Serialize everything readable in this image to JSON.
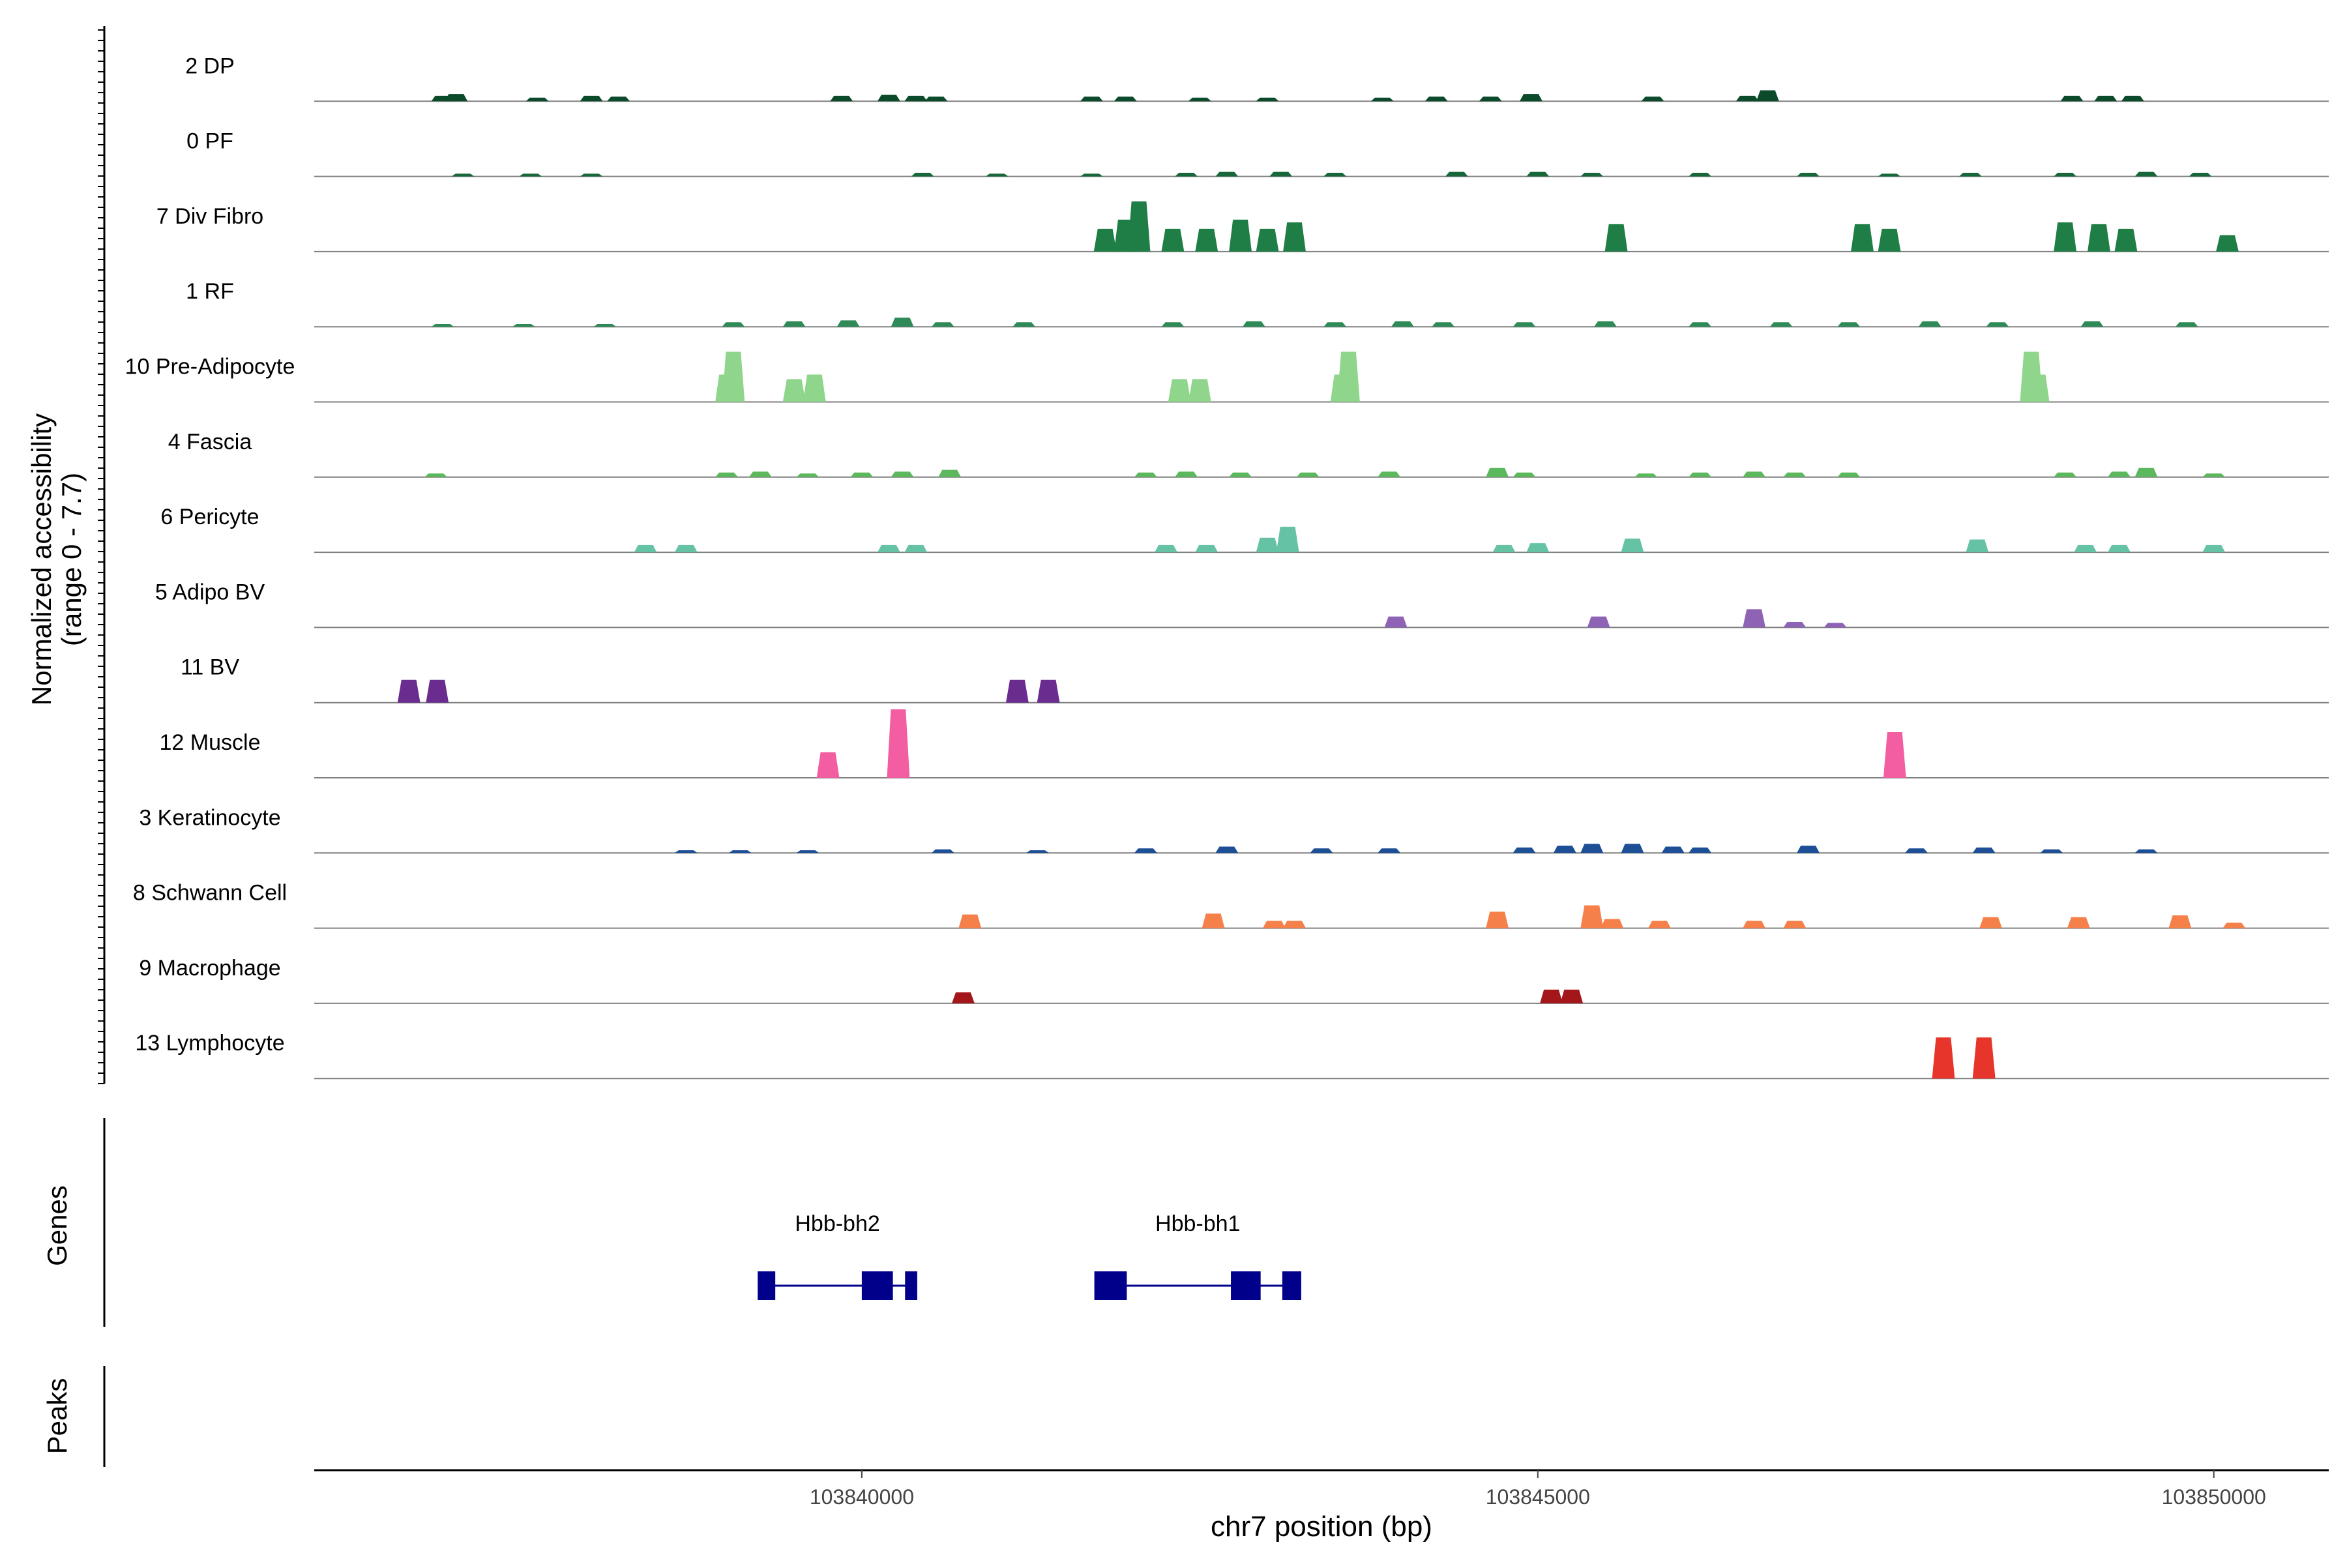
{
  "chart_data": {
    "type": "area",
    "title": "",
    "ylabel_line1": "Normalized accessibility",
    "ylabel_line2": "(range 0 - 7.7)",
    "y_range": [
      0,
      7.7
    ],
    "xlabel": "chr7 position (bp)",
    "x_range": [
      103835950,
      103850850
    ],
    "x_ticks": [
      {
        "value": 103840000,
        "label": "103840000"
      },
      {
        "value": 103845000,
        "label": "103845000"
      },
      {
        "value": 103850000,
        "label": "103850000"
      }
    ],
    "tracks": [
      {
        "name": "2 DP",
        "color": "#0b4a2a",
        "peaks": [
          [
            103836900,
            0.6
          ],
          [
            103837000,
            0.8
          ],
          [
            103837600,
            0.4
          ],
          [
            103838000,
            0.6
          ],
          [
            103838200,
            0.5
          ],
          [
            103839850,
            0.6
          ],
          [
            103840200,
            0.7
          ],
          [
            103840400,
            0.6
          ],
          [
            103840550,
            0.5
          ],
          [
            103841700,
            0.5
          ],
          [
            103841950,
            0.5
          ],
          [
            103842500,
            0.4
          ],
          [
            103843000,
            0.4
          ],
          [
            103843850,
            0.4
          ],
          [
            103844250,
            0.5
          ],
          [
            103844650,
            0.5
          ],
          [
            103844950,
            0.8
          ],
          [
            103845850,
            0.5
          ],
          [
            103846550,
            0.6
          ],
          [
            103846700,
            1.2
          ],
          [
            103848950,
            0.6
          ],
          [
            103849200,
            0.6
          ],
          [
            103849400,
            0.6
          ]
        ]
      },
      {
        "name": "0 PF",
        "color": "#17673a",
        "peaks": [
          [
            103837050,
            0.3
          ],
          [
            103837550,
            0.3
          ],
          [
            103838000,
            0.3
          ],
          [
            103840450,
            0.4
          ],
          [
            103841000,
            0.3
          ],
          [
            103841700,
            0.3
          ],
          [
            103842400,
            0.4
          ],
          [
            103842700,
            0.5
          ],
          [
            103843100,
            0.5
          ],
          [
            103843500,
            0.4
          ],
          [
            103844400,
            0.5
          ],
          [
            103845000,
            0.5
          ],
          [
            103845400,
            0.4
          ],
          [
            103846200,
            0.4
          ],
          [
            103847000,
            0.4
          ],
          [
            103847600,
            0.3
          ],
          [
            103848200,
            0.4
          ],
          [
            103848900,
            0.4
          ],
          [
            103849500,
            0.5
          ],
          [
            103849900,
            0.4
          ]
        ]
      },
      {
        "name": "7 Div Fibro",
        "color": "#1e7e45",
        "peaks": [
          [
            103841800,
            2.5
          ],
          [
            103841950,
            3.5
          ],
          [
            103842050,
            5.5
          ],
          [
            103842300,
            2.5
          ],
          [
            103842550,
            2.5
          ],
          [
            103842800,
            3.5
          ],
          [
            103843000,
            2.5
          ],
          [
            103843200,
            3.2
          ],
          [
            103845580,
            3.0
          ],
          [
            103847400,
            3.0
          ],
          [
            103847600,
            2.5
          ],
          [
            103848900,
            3.2
          ],
          [
            103849150,
            3.0
          ],
          [
            103849350,
            2.5
          ],
          [
            103850100,
            1.8
          ]
        ]
      },
      {
        "name": "1 RF",
        "color": "#2e8b57",
        "peaks": [
          [
            103836900,
            0.3
          ],
          [
            103837500,
            0.3
          ],
          [
            103838100,
            0.3
          ],
          [
            103839050,
            0.5
          ],
          [
            103839500,
            0.6
          ],
          [
            103839900,
            0.7
          ],
          [
            103840300,
            1.0
          ],
          [
            103840600,
            0.5
          ],
          [
            103841200,
            0.5
          ],
          [
            103842300,
            0.5
          ],
          [
            103842900,
            0.6
          ],
          [
            103843500,
            0.5
          ],
          [
            103844000,
            0.6
          ],
          [
            103844300,
            0.5
          ],
          [
            103844900,
            0.5
          ],
          [
            103845500,
            0.6
          ],
          [
            103846200,
            0.5
          ],
          [
            103846800,
            0.5
          ],
          [
            103847300,
            0.5
          ],
          [
            103847900,
            0.6
          ],
          [
            103848400,
            0.5
          ],
          [
            103849100,
            0.6
          ],
          [
            103849800,
            0.5
          ]
        ]
      },
      {
        "name": "10 Pre-Adipocyte",
        "color": "#8fd68c",
        "peaks": [
          [
            103839000,
            3.0
          ],
          [
            103839050,
            5.5
          ],
          [
            103839500,
            2.5
          ],
          [
            103839650,
            3.0
          ],
          [
            103842350,
            2.5
          ],
          [
            103842500,
            2.5
          ],
          [
            103843550,
            3.0
          ],
          [
            103843600,
            5.5
          ],
          [
            103848700,
            3.0
          ],
          [
            103848650,
            5.5
          ]
        ]
      },
      {
        "name": "4 Fascia",
        "color": "#5cb85c",
        "peaks": [
          [
            103836850,
            0.4
          ],
          [
            103839000,
            0.5
          ],
          [
            103839250,
            0.6
          ],
          [
            103839600,
            0.4
          ],
          [
            103840000,
            0.5
          ],
          [
            103840300,
            0.6
          ],
          [
            103840650,
            0.8
          ],
          [
            103842100,
            0.5
          ],
          [
            103842400,
            0.6
          ],
          [
            103842800,
            0.5
          ],
          [
            103843300,
            0.5
          ],
          [
            103843900,
            0.6
          ],
          [
            103844700,
            1.0
          ],
          [
            103844900,
            0.5
          ],
          [
            103845800,
            0.4
          ],
          [
            103846200,
            0.5
          ],
          [
            103846600,
            0.6
          ],
          [
            103846900,
            0.5
          ],
          [
            103847300,
            0.5
          ],
          [
            103848900,
            0.5
          ],
          [
            103849300,
            0.6
          ],
          [
            103849500,
            1.0
          ],
          [
            103850000,
            0.4
          ]
        ]
      },
      {
        "name": "6 Pericyte",
        "color": "#66c2a5",
        "peaks": [
          [
            103838400,
            0.8
          ],
          [
            103838700,
            0.8
          ],
          [
            103840200,
            0.8
          ],
          [
            103840400,
            0.8
          ],
          [
            103842250,
            0.8
          ],
          [
            103842550,
            0.8
          ],
          [
            103843000,
            1.6
          ],
          [
            103843150,
            2.8
          ],
          [
            103844750,
            0.8
          ],
          [
            103845000,
            1.0
          ],
          [
            103845700,
            1.5
          ],
          [
            103848250,
            1.4
          ],
          [
            103849050,
            0.8
          ],
          [
            103849300,
            0.8
          ],
          [
            103850000,
            0.8
          ]
        ]
      },
      {
        "name": "5 Adipo BV",
        "color": "#8e63b5",
        "peaks": [
          [
            103843950,
            1.2
          ],
          [
            103845450,
            1.2
          ],
          [
            103846600,
            2.0
          ],
          [
            103846900,
            0.6
          ],
          [
            103847200,
            0.5
          ]
        ]
      },
      {
        "name": "11 BV",
        "color": "#6a2d8f",
        "peaks": [
          [
            103836650,
            2.5
          ],
          [
            103836860,
            2.5
          ],
          [
            103841150,
            2.5
          ],
          [
            103841380,
            2.5
          ]
        ]
      },
      {
        "name": "12 Muscle",
        "color": "#f25ea1",
        "peaks": [
          [
            103839750,
            2.8
          ],
          [
            103840270,
            7.5
          ],
          [
            103847640,
            5.0
          ]
        ]
      },
      {
        "name": "3 Keratinocyte",
        "color": "#1d4f96",
        "peaks": [
          [
            103838700,
            0.3
          ],
          [
            103839100,
            0.3
          ],
          [
            103839600,
            0.3
          ],
          [
            103840600,
            0.4
          ],
          [
            103841300,
            0.3
          ],
          [
            103842100,
            0.5
          ],
          [
            103842700,
            0.7
          ],
          [
            103843400,
            0.5
          ],
          [
            103843900,
            0.5
          ],
          [
            103844900,
            0.6
          ],
          [
            103845200,
            0.8
          ],
          [
            103845400,
            1.0
          ],
          [
            103845700,
            1.0
          ],
          [
            103846000,
            0.7
          ],
          [
            103846200,
            0.6
          ],
          [
            103847000,
            0.8
          ],
          [
            103847800,
            0.5
          ],
          [
            103848300,
            0.6
          ],
          [
            103848800,
            0.4
          ],
          [
            103849500,
            0.4
          ]
        ]
      },
      {
        "name": "8 Schwann Cell",
        "color": "#f5804a",
        "peaks": [
          [
            103840800,
            1.5
          ],
          [
            103842600,
            1.6
          ],
          [
            103843050,
            0.8
          ],
          [
            103843200,
            0.8
          ],
          [
            103844700,
            1.8
          ],
          [
            103845400,
            2.5
          ],
          [
            103845550,
            1.0
          ],
          [
            103845900,
            0.8
          ],
          [
            103846600,
            0.8
          ],
          [
            103846900,
            0.8
          ],
          [
            103848350,
            1.2
          ],
          [
            103849000,
            1.2
          ],
          [
            103849750,
            1.4
          ],
          [
            103850150,
            0.6
          ]
        ]
      },
      {
        "name": "9 Macrophage",
        "color": "#a3161a",
        "peaks": [
          [
            103840750,
            1.2
          ],
          [
            103845100,
            1.5
          ],
          [
            103845250,
            1.5
          ]
        ]
      },
      {
        "name": "13 Lymphocyte",
        "color": "#e8352b",
        "peaks": [
          [
            103848000,
            4.5
          ],
          [
            103848300,
            4.5
          ]
        ]
      }
    ],
    "genes_label": "Genes",
    "peaks_label": "Peaks",
    "gene_color": "#00008b",
    "genes": [
      {
        "name": "Hbb-bh2",
        "start": 103839230,
        "end": 103840410,
        "exons": [
          [
            103839230,
            103839360
          ],
          [
            103840000,
            103840230
          ],
          [
            103840320,
            103840410
          ]
        ]
      },
      {
        "name": "Hbb-bh1",
        "start": 103841720,
        "end": 103843250,
        "exons": [
          [
            103841720,
            103841960
          ],
          [
            103842730,
            103842950
          ],
          [
            103843110,
            103843250
          ]
        ]
      }
    ]
  }
}
